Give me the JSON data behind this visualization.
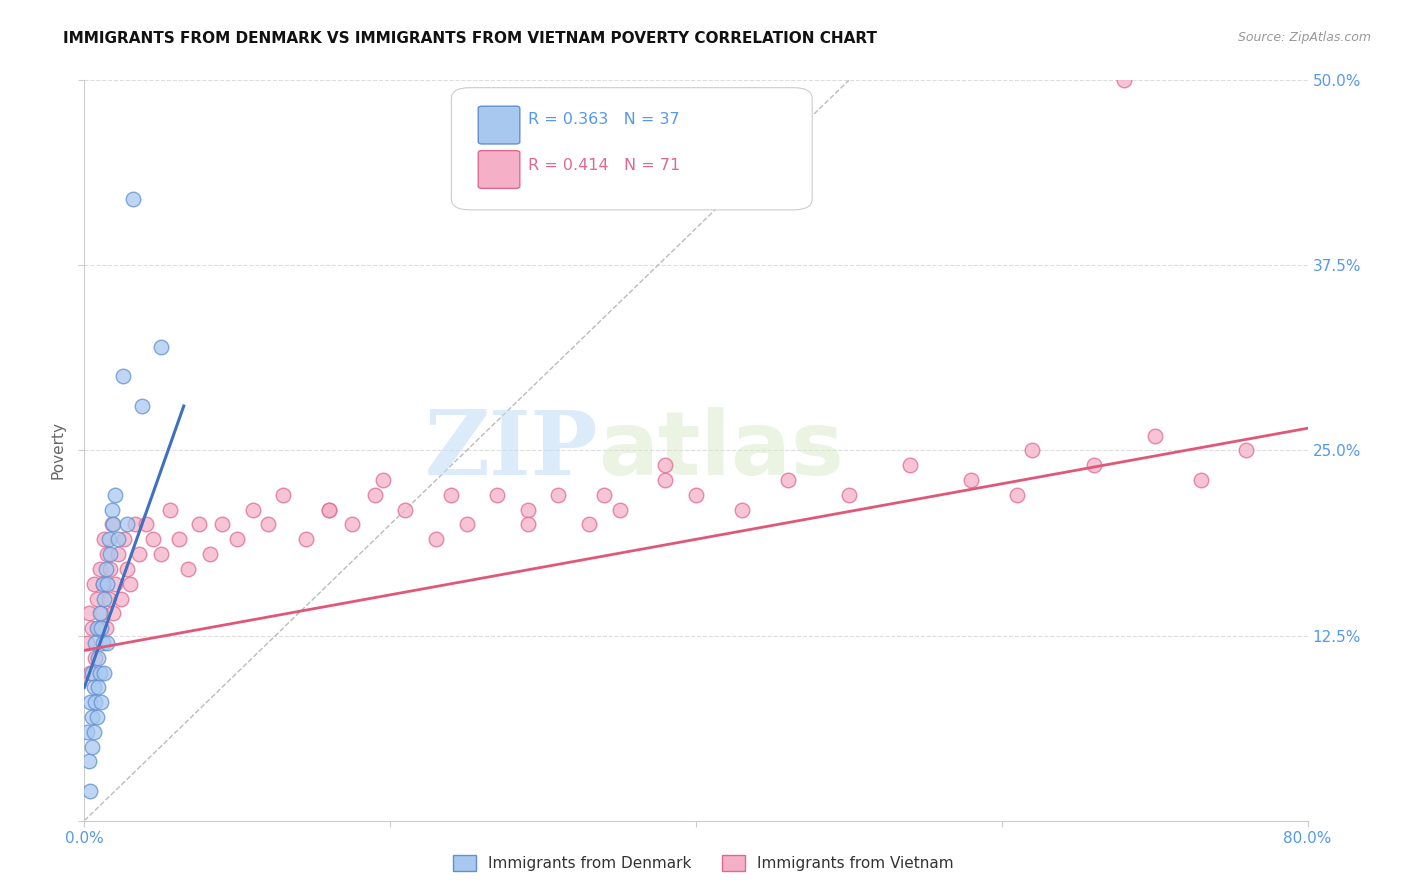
{
  "title": "IMMIGRANTS FROM DENMARK VS IMMIGRANTS FROM VIETNAM POVERTY CORRELATION CHART",
  "source": "Source: ZipAtlas.com",
  "ylabel": "Poverty",
  "xlim": [
    0.0,
    0.8
  ],
  "ylim": [
    0.0,
    0.5
  ],
  "denmark_color": "#a8c8f0",
  "vietnam_color": "#f5b0c8",
  "denmark_edge": "#6090d0",
  "vietnam_edge": "#e06890",
  "trend_denmark_color": "#4070c0",
  "trend_vietnam_color": "#e05878",
  "diagonal_color": "#bbbbbb",
  "R_denmark": 0.363,
  "N_denmark": 37,
  "R_vietnam": 0.414,
  "N_vietnam": 71,
  "background_color": "#ffffff",
  "grid_color": "#dddddd",
  "title_color": "#111111",
  "axis_label_color": "#666666",
  "tick_label_color": "#5599ee",
  "legend_label_denmark": "Immigrants from Denmark",
  "legend_label_vietnam": "Immigrants from Vietnam",
  "watermark_zip": "ZIP",
  "watermark_atlas": "atlas",
  "denmark_x": [
    0.002,
    0.003,
    0.004,
    0.004,
    0.005,
    0.005,
    0.005,
    0.006,
    0.006,
    0.007,
    0.007,
    0.008,
    0.008,
    0.009,
    0.009,
    0.01,
    0.01,
    0.011,
    0.011,
    0.012,
    0.012,
    0.013,
    0.013,
    0.014,
    0.015,
    0.015,
    0.016,
    0.017,
    0.018,
    0.019,
    0.02,
    0.022,
    0.025,
    0.028,
    0.032,
    0.038,
    0.05
  ],
  "denmark_y": [
    0.06,
    0.04,
    0.08,
    0.02,
    0.1,
    0.07,
    0.05,
    0.09,
    0.06,
    0.12,
    0.08,
    0.13,
    0.07,
    0.11,
    0.09,
    0.14,
    0.1,
    0.13,
    0.08,
    0.16,
    0.12,
    0.15,
    0.1,
    0.17,
    0.16,
    0.12,
    0.19,
    0.18,
    0.21,
    0.2,
    0.22,
    0.19,
    0.3,
    0.2,
    0.42,
    0.28,
    0.32
  ],
  "vietnam_x": [
    0.002,
    0.003,
    0.004,
    0.005,
    0.006,
    0.007,
    0.008,
    0.009,
    0.01,
    0.011,
    0.012,
    0.013,
    0.014,
    0.015,
    0.016,
    0.017,
    0.018,
    0.019,
    0.02,
    0.022,
    0.024,
    0.026,
    0.028,
    0.03,
    0.033,
    0.036,
    0.04,
    0.045,
    0.05,
    0.056,
    0.062,
    0.068,
    0.075,
    0.082,
    0.09,
    0.1,
    0.11,
    0.12,
    0.13,
    0.145,
    0.16,
    0.175,
    0.19,
    0.21,
    0.23,
    0.25,
    0.27,
    0.29,
    0.31,
    0.33,
    0.35,
    0.38,
    0.4,
    0.43,
    0.46,
    0.5,
    0.54,
    0.58,
    0.62,
    0.66,
    0.7,
    0.73,
    0.76,
    0.61,
    0.16,
    0.195,
    0.24,
    0.29,
    0.34,
    0.38,
    0.68
  ],
  "vietnam_y": [
    0.12,
    0.14,
    0.1,
    0.13,
    0.16,
    0.11,
    0.15,
    0.13,
    0.17,
    0.14,
    0.16,
    0.19,
    0.13,
    0.18,
    0.15,
    0.17,
    0.2,
    0.14,
    0.16,
    0.18,
    0.15,
    0.19,
    0.17,
    0.16,
    0.2,
    0.18,
    0.2,
    0.19,
    0.18,
    0.21,
    0.19,
    0.17,
    0.2,
    0.18,
    0.2,
    0.19,
    0.21,
    0.2,
    0.22,
    0.19,
    0.21,
    0.2,
    0.22,
    0.21,
    0.19,
    0.2,
    0.22,
    0.21,
    0.22,
    0.2,
    0.21,
    0.23,
    0.22,
    0.21,
    0.23,
    0.22,
    0.24,
    0.23,
    0.25,
    0.24,
    0.26,
    0.23,
    0.25,
    0.22,
    0.21,
    0.23,
    0.22,
    0.2,
    0.22,
    0.24,
    0.5
  ],
  "trend_dk_x0": 0.0,
  "trend_dk_x1": 0.065,
  "trend_dk_y0": 0.09,
  "trend_dk_y1": 0.28,
  "trend_vn_x0": 0.0,
  "trend_vn_x1": 0.8,
  "trend_vn_y0": 0.115,
  "trend_vn_y1": 0.265
}
